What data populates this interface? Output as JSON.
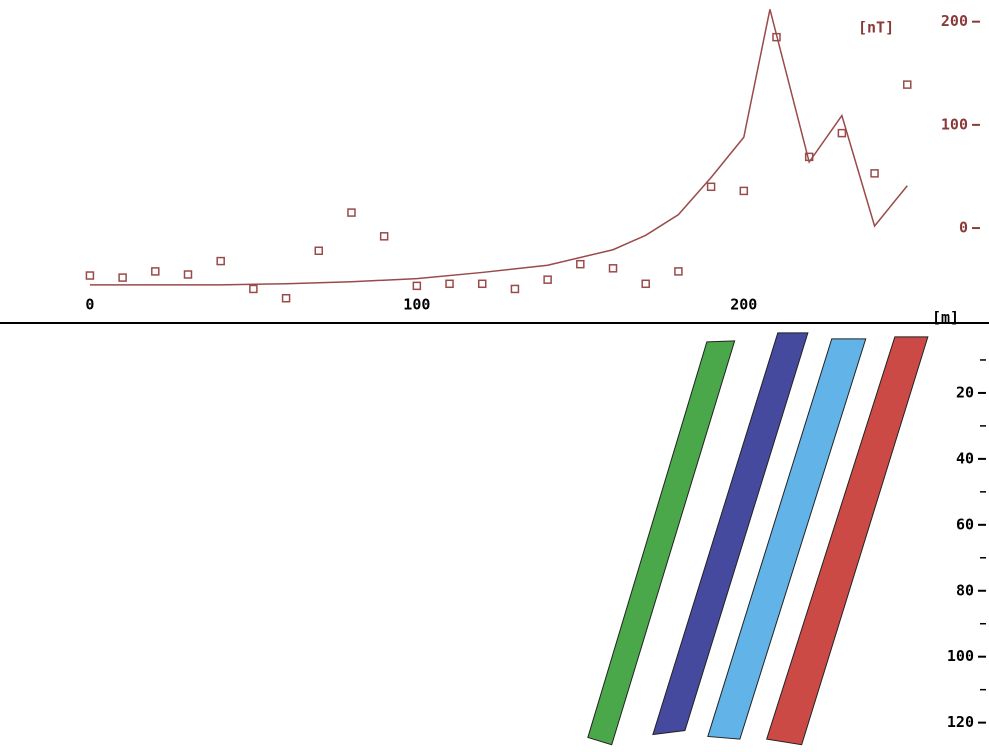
{
  "chart_data": [
    {
      "type": "scatter",
      "y_label": "[nT]",
      "x_label": "[m]",
      "xlim": [
        -27.5,
        275
      ],
      "xticks": [
        0,
        100,
        200
      ],
      "ylim": [
        -92,
        221
      ],
      "yticks": [
        0,
        100,
        200
      ],
      "series": [
        {
          "color": "#9a4a4a",
          "marker": "square",
          "x": [
            0,
            10,
            20,
            30,
            40,
            50,
            60,
            70,
            80,
            90,
            100,
            110,
            120,
            130,
            140,
            150,
            160,
            170,
            180,
            190,
            200,
            210,
            220,
            230,
            240,
            250
          ],
          "values": [
            -46,
            -48,
            -42,
            -45,
            -32,
            -59,
            -68,
            -22,
            15,
            -8,
            -56,
            -54,
            -54,
            -59,
            -50,
            -35,
            -39,
            -54,
            -42,
            40,
            36,
            185,
            69,
            92,
            53,
            139
          ]
        },
        {
          "color": "#9a4a4a",
          "marker": "line",
          "x": [
            0,
            20,
            40,
            60,
            80,
            100,
            120,
            140,
            160,
            170,
            180,
            190,
            200,
            208,
            220,
            230,
            240,
            250
          ],
          "values": [
            -55,
            -55,
            -55,
            -54,
            -52,
            -49,
            -43,
            -36,
            -21,
            -7,
            13,
            49,
            88,
            212,
            64,
            109,
            2,
            41
          ]
        }
      ]
    },
    {
      "type": "bodies",
      "y_label": "[m]",
      "xlim": [
        -27.5,
        275
      ],
      "ylim": [
        0,
        128
      ],
      "yticks": [
        20,
        40,
        60,
        80,
        100,
        120
      ],
      "yminor": [
        10,
        30,
        50,
        70,
        90,
        110
      ],
      "bodies": [
        {
          "color": "#4aa84a",
          "x": [
            188.7,
            197.2,
            159.6,
            152.3
          ],
          "depth": [
            4.5,
            4.2,
            126.7,
            124.5
          ]
        },
        {
          "color": "#454a9e",
          "x": [
            210.4,
            219.6,
            182.0,
            172.2
          ],
          "depth": [
            1.8,
            1.8,
            122.4,
            123.6
          ]
        },
        {
          "color": "#62b4e8",
          "x": [
            226.9,
            237.3,
            198.8,
            189.0
          ],
          "depth": [
            3.6,
            3.6,
            125.0,
            124.2
          ]
        },
        {
          "color": "#cc4a46",
          "x": [
            246.2,
            256.3,
            217.7,
            207.0
          ],
          "depth": [
            3.0,
            3.0,
            126.7,
            125.0
          ]
        }
      ]
    }
  ]
}
